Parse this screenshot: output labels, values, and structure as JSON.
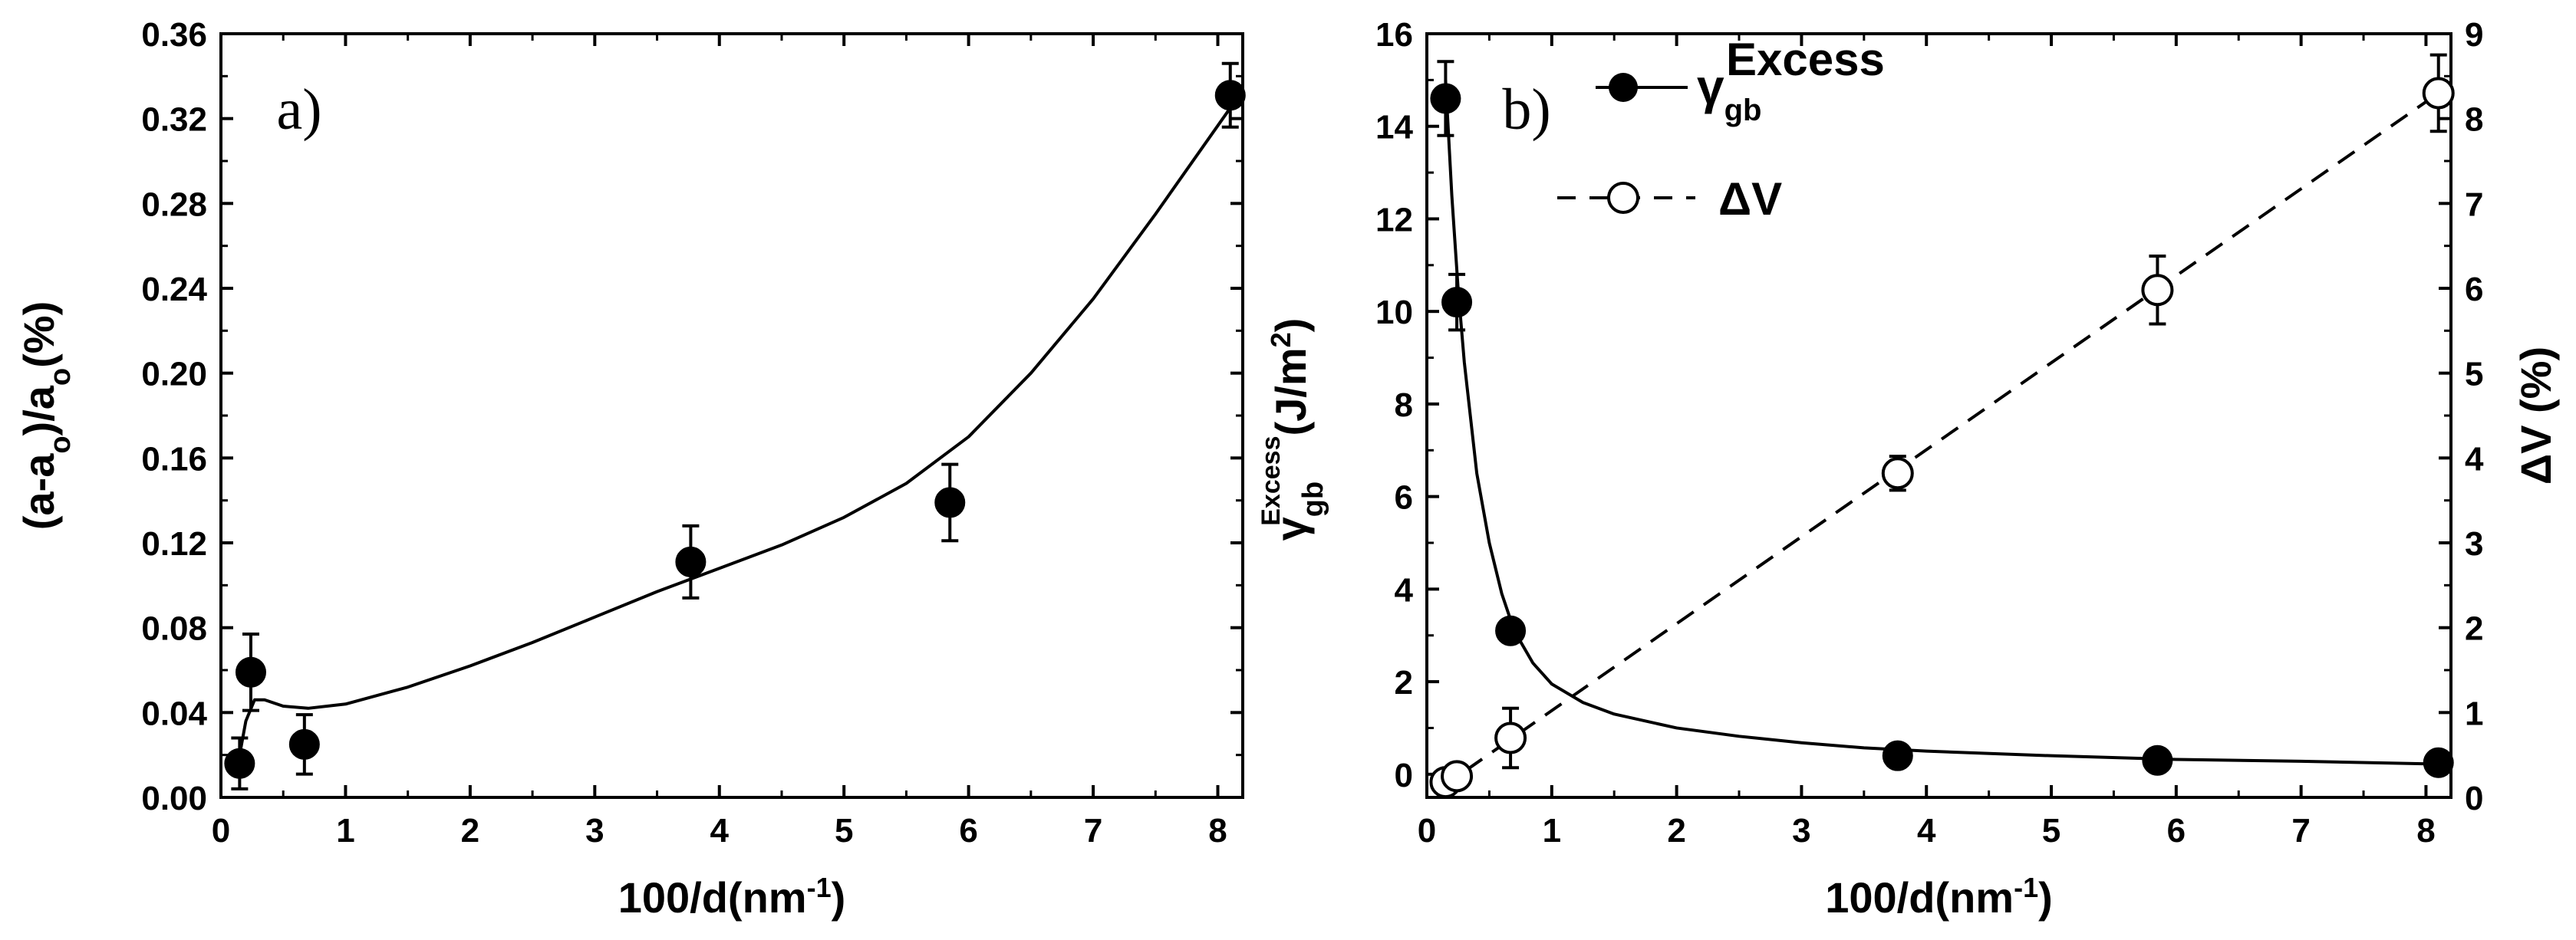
{
  "chart_data": [
    {
      "panel": "a",
      "panel_label": "a)",
      "type": "scatter",
      "xlabel": "100/d(nm",
      "xlabel_sup": "-1",
      "xlabel_close": ")",
      "ylabel": "(a-a",
      "ylabel_sub1": "o",
      "ylabel_mid": ")/a",
      "ylabel_sub2": "o",
      "ylabel_end": "(%)",
      "xlim": [
        0,
        8.2
      ],
      "ylim": [
        0,
        0.36
      ],
      "xticks": [
        "0",
        "1",
        "2",
        "3",
        "4",
        "5",
        "6",
        "7",
        "8"
      ],
      "yticks": [
        "0.00",
        "0.04",
        "0.08",
        "0.12",
        "0.16",
        "0.20",
        "0.24",
        "0.28",
        "0.32",
        "0.36"
      ],
      "points": [
        {
          "x": 0.15,
          "y": 0.016,
          "err": 0.012
        },
        {
          "x": 0.24,
          "y": 0.059,
          "err": 0.018
        },
        {
          "x": 0.67,
          "y": 0.025,
          "err": 0.014
        },
        {
          "x": 3.77,
          "y": 0.111,
          "err": 0.017
        },
        {
          "x": 5.85,
          "y": 0.139,
          "err": 0.018
        },
        {
          "x": 8.1,
          "y": 0.331,
          "err": 0.015
        }
      ],
      "fit_curve": [
        [
          0.15,
          0.02
        ],
        [
          0.2,
          0.036
        ],
        [
          0.27,
          0.046
        ],
        [
          0.35,
          0.046
        ],
        [
          0.5,
          0.043
        ],
        [
          0.7,
          0.042
        ],
        [
          1.0,
          0.044
        ],
        [
          1.5,
          0.052
        ],
        [
          2.0,
          0.062
        ],
        [
          2.5,
          0.073
        ],
        [
          3.0,
          0.085
        ],
        [
          3.5,
          0.097
        ],
        [
          4.0,
          0.108
        ],
        [
          4.5,
          0.119
        ],
        [
          5.0,
          0.132
        ],
        [
          5.5,
          0.148
        ],
        [
          6.0,
          0.17
        ],
        [
          6.5,
          0.2
        ],
        [
          7.0,
          0.235
        ],
        [
          7.5,
          0.275
        ],
        [
          8.1,
          0.325
        ]
      ]
    },
    {
      "panel": "b",
      "panel_label": "b)",
      "type": "scatter",
      "xlabel": "100/d(nm",
      "xlabel_sup": "-1",
      "xlabel_close": ")",
      "ylabel_left_symbol": "γ",
      "ylabel_left_sub": "gb",
      "ylabel_left_sup": "Excess",
      "ylabel_left_units": "(J/m",
      "ylabel_left_units_sup": "2",
      "ylabel_left_close": ")",
      "ylabel_right": "ΔV (%)",
      "xlim": [
        0,
        8.2
      ],
      "ylim_left": [
        -0.5,
        16
      ],
      "ylim_right": [
        0,
        9
      ],
      "xticks": [
        "0",
        "1",
        "2",
        "3",
        "4",
        "5",
        "6",
        "7",
        "8"
      ],
      "yticks_left": [
        "0",
        "2",
        "4",
        "6",
        "8",
        "10",
        "12",
        "14",
        "16"
      ],
      "yticks_right": [
        "0",
        "1",
        "2",
        "3",
        "4",
        "5",
        "6",
        "7",
        "8",
        "9"
      ],
      "legend": [
        {
          "symbol": "γ",
          "sub": "gb",
          "sup": "Excess",
          "marker": "filled",
          "line": "solid"
        },
        {
          "symbol": "ΔV",
          "marker": "open",
          "line": "dashed"
        }
      ],
      "series": [
        {
          "marker": "filled",
          "axis": "left",
          "points": [
            {
              "x": 0.15,
              "y": 14.6,
              "err": 0.8
            },
            {
              "x": 0.24,
              "y": 10.2,
              "err": 0.6
            },
            {
              "x": 0.67,
              "y": 3.1,
              "err": 0
            },
            {
              "x": 3.77,
              "y": 0.4,
              "err": 0
            },
            {
              "x": 5.85,
              "y": 0.3,
              "err": 0
            },
            {
              "x": 8.1,
              "y": 0.25,
              "err": 0
            }
          ]
        },
        {
          "marker": "open",
          "axis": "right",
          "points": [
            {
              "x": 0.15,
              "y": 0.18,
              "err": 0.05
            },
            {
              "x": 0.24,
              "y": 0.25,
              "err": 0.05
            },
            {
              "x": 0.67,
              "y": 0.7,
              "err": 0.35
            },
            {
              "x": 3.77,
              "y": 3.82,
              "err": 0.2
            },
            {
              "x": 5.85,
              "y": 5.98,
              "err": 0.4
            },
            {
              "x": 8.1,
              "y": 8.3,
              "err": 0.45
            }
          ]
        }
      ],
      "fit_curve_left": [
        [
          0.15,
          15.0
        ],
        [
          0.2,
          12.5
        ],
        [
          0.25,
          10.5
        ],
        [
          0.3,
          8.9
        ],
        [
          0.4,
          6.5
        ],
        [
          0.5,
          5.0
        ],
        [
          0.6,
          3.9
        ],
        [
          0.7,
          3.1
        ],
        [
          0.85,
          2.4
        ],
        [
          1.0,
          1.95
        ],
        [
          1.25,
          1.55
        ],
        [
          1.5,
          1.3
        ],
        [
          2.0,
          1.0
        ],
        [
          2.5,
          0.82
        ],
        [
          3.0,
          0.68
        ],
        [
          3.5,
          0.57
        ],
        [
          4.0,
          0.5
        ],
        [
          5.0,
          0.4
        ],
        [
          6.0,
          0.32
        ],
        [
          7.0,
          0.28
        ],
        [
          8.1,
          0.22
        ]
      ],
      "fit_line_right": [
        [
          0.1,
          0.1
        ],
        [
          8.1,
          8.3
        ]
      ]
    }
  ]
}
